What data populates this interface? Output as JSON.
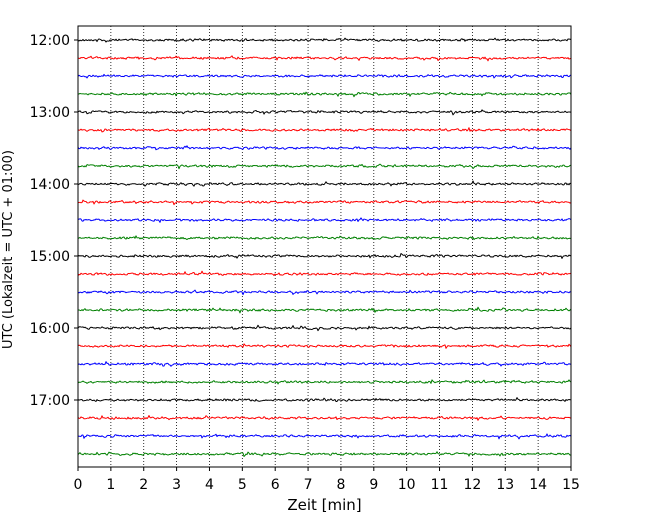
{
  "chart_data": {
    "type": "line",
    "title": "",
    "xlabel": "Zeit  [min]",
    "ylabel": "UTC (Lokalzeit = UTC + 01:00)",
    "xlim": [
      0,
      15
    ],
    "x_ticks": [
      "0",
      "1",
      "2",
      "3",
      "4",
      "5",
      "6",
      "7",
      "8",
      "9",
      "10",
      "11",
      "12",
      "13",
      "14",
      "15"
    ],
    "y_ticks": [
      "12:00",
      "13:00",
      "14:00",
      "15:00",
      "16:00",
      "17:00"
    ],
    "grid": "vertical dotted",
    "row_interval_minutes": 15,
    "trace_start": "12:00",
    "trace_count": 24,
    "colors": [
      "#000000",
      "#ff0000",
      "#0000ff",
      "#008000"
    ]
  }
}
